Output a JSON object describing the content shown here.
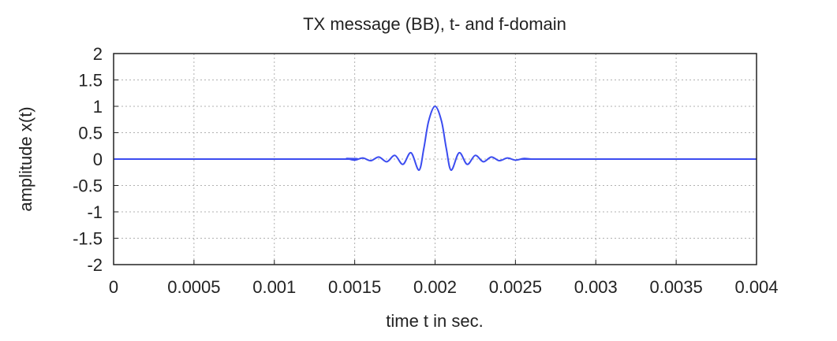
{
  "chart_data": {
    "type": "line",
    "title": "TX message (BB), t- and f-domain",
    "xlabel": "time t in sec.",
    "ylabel": "amplitude x(t)",
    "xlim": [
      0,
      0.004
    ],
    "ylim": [
      -2,
      2
    ],
    "x_ticks": [
      "0",
      "0.0005",
      "0.001",
      "0.0015",
      "0.002",
      "0.0025",
      "0.003",
      "0.0035",
      "0.004"
    ],
    "y_ticks": [
      "2",
      "1.5",
      "1",
      "0.5",
      "0",
      "-0.5",
      "-1",
      "-1.5",
      "-2"
    ],
    "grid": true,
    "series": [
      {
        "color": "#3b4cf0",
        "x": [
          0,
          0.0014,
          0.00145,
          0.0015,
          0.00155,
          0.0016,
          0.00165,
          0.0017,
          0.00175,
          0.0018,
          0.00185,
          0.0019,
          0.00193,
          0.00196,
          0.002,
          0.00204,
          0.00207,
          0.0021,
          0.00215,
          0.0022,
          0.00225,
          0.0023,
          0.00235,
          0.0024,
          0.00245,
          0.0025,
          0.00255,
          0.0026,
          0.00265,
          0.004
        ],
        "y": [
          0,
          0.0,
          0.01,
          -0.02,
          0.02,
          -0.03,
          0.04,
          -0.05,
          0.07,
          -0.1,
          0.12,
          -0.21,
          0.2,
          0.72,
          1.0,
          0.72,
          0.2,
          -0.21,
          0.12,
          -0.1,
          0.07,
          -0.05,
          0.04,
          -0.03,
          0.02,
          -0.02,
          0.01,
          0.0,
          0.0,
          0
        ]
      }
    ]
  }
}
